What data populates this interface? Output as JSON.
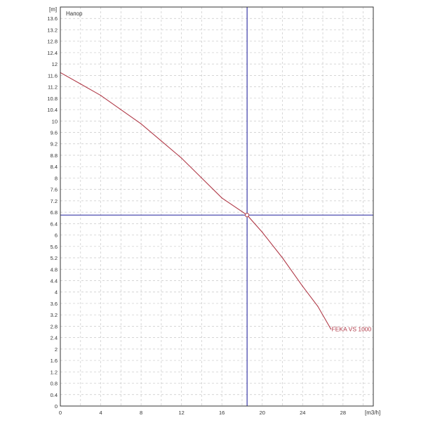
{
  "chart_data": {
    "type": "line",
    "title": "",
    "xlabel": "[m3/h]",
    "ylabel": "[m]",
    "curve_label": "Напор",
    "xlim": [
      0,
      31
    ],
    "ylim": [
      0,
      14
    ],
    "x_ticks": [
      0,
      4,
      8,
      12,
      16,
      20,
      24,
      28
    ],
    "x_tick_labels": [
      "0",
      "4",
      "8",
      "12",
      "16",
      "20",
      "24",
      "28"
    ],
    "y_ticks": [
      0,
      0.4,
      0.8,
      1.2,
      1.6,
      2,
      2.4,
      2.8,
      3.2,
      3.6,
      4,
      4.4,
      4.8,
      5.2,
      5.6,
      6,
      6.4,
      6.8,
      7.2,
      7.6,
      8,
      8.4,
      8.8,
      9.2,
      9.6,
      10,
      10.4,
      10.8,
      11.2,
      11.6,
      12,
      12.4,
      12.8,
      13.2,
      13.6
    ],
    "y_tick_labels": [
      "0",
      "0.4",
      "0.8",
      "1.2",
      "1.6",
      "2",
      "2.4",
      "2.8",
      "3.2",
      "3.6",
      "4",
      "4.4",
      "4.8",
      "5.2",
      "5.6",
      "6",
      "6.4",
      "6.8",
      "7.2",
      "7.6",
      "8",
      "8.4",
      "8.8",
      "9.2",
      "9.6",
      "10",
      "10.4",
      "10.8",
      "11.2",
      "11.6",
      "12",
      "12.4",
      "12.8",
      "13.2",
      "13.6"
    ],
    "grid": true,
    "series": [
      {
        "name": "FEKA VS 1000",
        "color": "#b03a48",
        "x": [
          0,
          2,
          4,
          6,
          8,
          10,
          12,
          14,
          16,
          18.5,
          20,
          22,
          24,
          25.5,
          26.8
        ],
        "y": [
          11.7,
          11.3,
          10.9,
          10.4,
          9.9,
          9.3,
          8.7,
          8.0,
          7.3,
          6.7,
          6.1,
          5.2,
          4.2,
          3.5,
          2.7
        ]
      }
    ],
    "operating_point": {
      "x": 18.5,
      "y": 6.7,
      "line_color": "#3a3aa8"
    }
  }
}
